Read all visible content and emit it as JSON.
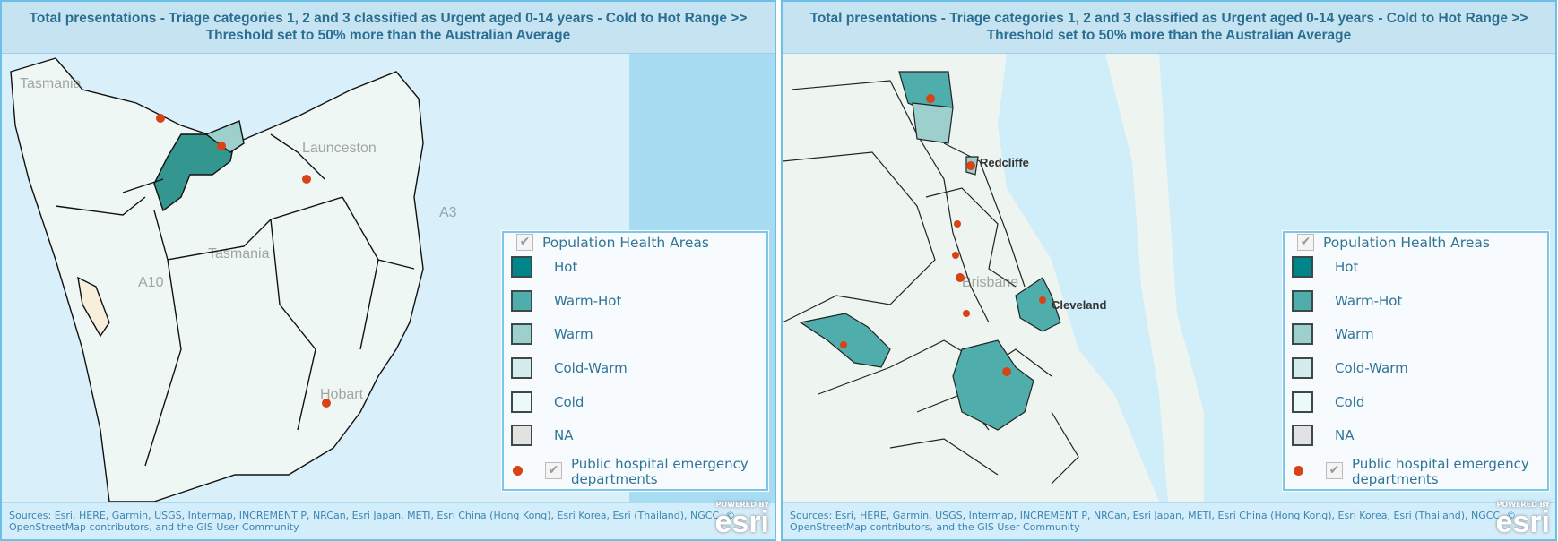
{
  "panels": [
    {
      "title": "Total presentations - Triage categories 1, 2 and 3 classified as Urgent aged 0-14 years - Cold to Hot Range >> Threshold set to 50% more than the Australian Average",
      "map_labels": {
        "region_nw": "Tasmania",
        "city": "Launceston",
        "region": "Tasmania",
        "road1": "A10",
        "road2": "A3",
        "capital": "Hobart"
      }
    },
    {
      "title": "Total presentations - Triage categories 1, 2 and 3 classified as Urgent aged 0-14 years - Cold to Hot Range >> Threshold set to 50% more than the Australian Average",
      "map_labels": {
        "city1": "Redcliffe",
        "city2": "Brisbane",
        "city3": "Cleveland"
      }
    }
  ],
  "legend": {
    "layer_title": "Population Health Areas",
    "classes": [
      {
        "label": "Hot",
        "color": "#00868a"
      },
      {
        "label": "Warm-Hot",
        "color": "#4fadab"
      },
      {
        "label": "Warm",
        "color": "#9dcfcc"
      },
      {
        "label": "Cold-Warm",
        "color": "#d5ecec"
      },
      {
        "label": "Cold",
        "color": "#ecf9f8"
      },
      {
        "label": "NA",
        "color": "#e2e2e2"
      }
    ],
    "hospital_layer": "Public hospital emergency departments",
    "hospital_color": "#d84315"
  },
  "attribution": "Sources: Esri, HERE, Garmin, USGS, Intermap, INCREMENT P, NRCan, Esri Japan, METI, Esri China (Hong Kong), Esri Korea, Esri (Thailand), NGCC, © OpenStreetMap contributors, and the GIS User Community",
  "esri_badge": {
    "powered": "POWERED BY",
    "logo": "esri"
  }
}
